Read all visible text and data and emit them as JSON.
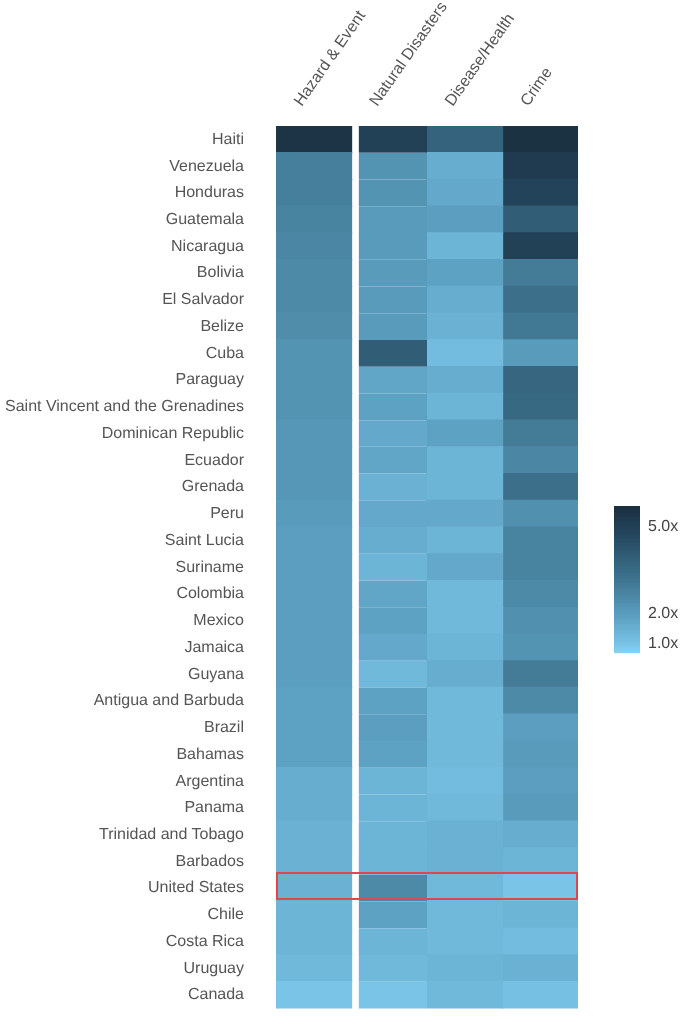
{
  "chart_data": {
    "type": "heatmap",
    "categories": [
      "Hazard & Event",
      "Natural Disasters",
      "Disease/Health",
      "Crime"
    ],
    "y_categories": [
      "Haiti",
      "Venezuela",
      "Honduras",
      "Guatemala",
      "Nicaragua",
      "Bolivia",
      "El Salvador",
      "Belize",
      "Cuba",
      "Paraguay",
      "Saint Vincent and the Grenadines",
      "Dominican Republic",
      "Ecuador",
      "Grenada",
      "Peru",
      "Saint Lucia",
      "Suriname",
      "Colombia",
      "Mexico",
      "Jamaica",
      "Guyana",
      "Antigua and Barbuda",
      "Brazil",
      "Bahamas",
      "Argentina",
      "Panama",
      "Trinidad and Tobago",
      "Barbados",
      "United States",
      "Chile",
      "Costa Rica",
      "Uruguay",
      "Canada"
    ],
    "cells": [
      [
        5.5,
        5.0,
        3.8,
        5.6
      ],
      [
        2.9,
        2.3,
        1.6,
        5.2
      ],
      [
        2.9,
        2.3,
        1.7,
        4.9
      ],
      [
        2.8,
        2.1,
        2.0,
        4.0
      ],
      [
        2.7,
        2.1,
        1.4,
        5.0
      ],
      [
        2.6,
        2.1,
        1.9,
        3.0
      ],
      [
        2.6,
        2.1,
        1.6,
        3.4
      ],
      [
        2.5,
        2.1,
        1.5,
        3.1
      ],
      [
        2.3,
        4.0,
        1.2,
        2.1
      ],
      [
        2.3,
        1.8,
        1.6,
        3.7
      ],
      [
        2.3,
        1.9,
        1.4,
        3.6
      ],
      [
        2.2,
        1.7,
        1.9,
        3.0
      ],
      [
        2.2,
        1.8,
        1.4,
        2.7
      ],
      [
        2.2,
        1.5,
        1.4,
        3.4
      ],
      [
        2.1,
        1.7,
        1.7,
        2.4
      ],
      [
        2.0,
        1.6,
        1.4,
        2.8
      ],
      [
        2.0,
        1.4,
        1.7,
        2.8
      ],
      [
        2.0,
        1.8,
        1.3,
        2.6
      ],
      [
        2.0,
        1.9,
        1.3,
        2.4
      ],
      [
        2.0,
        1.7,
        1.4,
        2.3
      ],
      [
        2.0,
        1.3,
        1.6,
        3.0
      ],
      [
        1.9,
        1.9,
        1.3,
        2.6
      ],
      [
        1.9,
        2.0,
        1.3,
        2.0
      ],
      [
        1.9,
        1.9,
        1.3,
        2.1
      ],
      [
        1.6,
        1.4,
        1.2,
        2.0
      ],
      [
        1.6,
        1.4,
        1.3,
        2.1
      ],
      [
        1.5,
        1.4,
        1.5,
        1.6
      ],
      [
        1.5,
        1.4,
        1.5,
        1.4
      ],
      [
        1.5,
        2.6,
        1.3,
        1.0
      ],
      [
        1.4,
        1.9,
        1.3,
        1.4
      ],
      [
        1.4,
        1.4,
        1.3,
        1.2
      ],
      [
        1.3,
        1.3,
        1.4,
        1.5
      ],
      [
        1.0,
        1.0,
        1.3,
        1.1
      ]
    ],
    "clim": [
      0.7,
      5.7
    ],
    "cticks": [
      {
        "value": 1,
        "label": "1.0x"
      },
      {
        "value": 2,
        "label": "2.0x"
      },
      {
        "value": 5,
        "label": "5.0x"
      }
    ]
  }
}
